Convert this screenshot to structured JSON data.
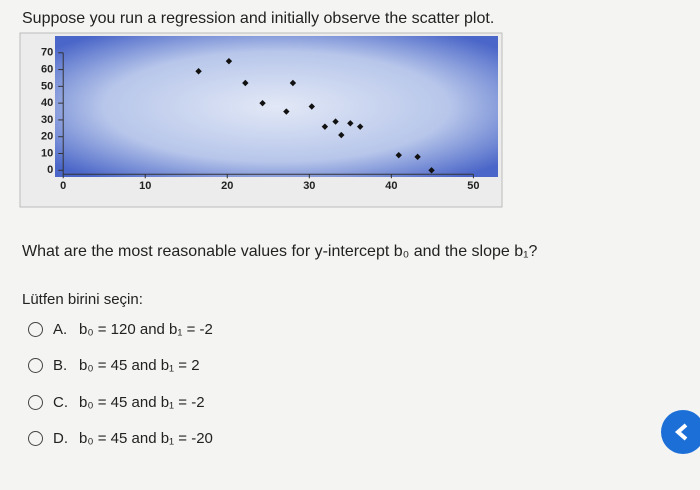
{
  "question": "Suppose you run a regression and initially observe the scatter plot.",
  "chart_data": {
    "type": "scatter",
    "x": [
      16.5,
      20.2,
      22.2,
      24.3,
      27.2,
      28,
      30.3,
      31.9,
      33.2,
      33.9,
      35,
      36.2,
      40.9,
      43.2,
      44.9
    ],
    "values": [
      59,
      65,
      52,
      40,
      35,
      52,
      38,
      26,
      29,
      21,
      28,
      26,
      9,
      8,
      0
    ],
    "color": "#111111",
    "xlim": [
      -1,
      53
    ],
    "ylim": [
      -4,
      80
    ],
    "xticks": [
      0,
      10,
      20,
      30,
      40,
      50
    ],
    "yticks": [
      0,
      10,
      20,
      30,
      40,
      50,
      60,
      70
    ]
  },
  "prompt": "What are the most reasonable values for y-intercept b₀ and the slope b₁?",
  "instruction": "Lütfen birini seçin:",
  "options": [
    {
      "letter": "A.",
      "text": "b₀ = 120 and b₁ = -2"
    },
    {
      "letter": "B.",
      "text": "b₀ = 45 and b₁ = 2"
    },
    {
      "letter": "C.",
      "text": "b₀ = 45 and b₁ = -2"
    },
    {
      "letter": "D.",
      "text": "b₀ = 45 and b₁ = -20"
    }
  ]
}
